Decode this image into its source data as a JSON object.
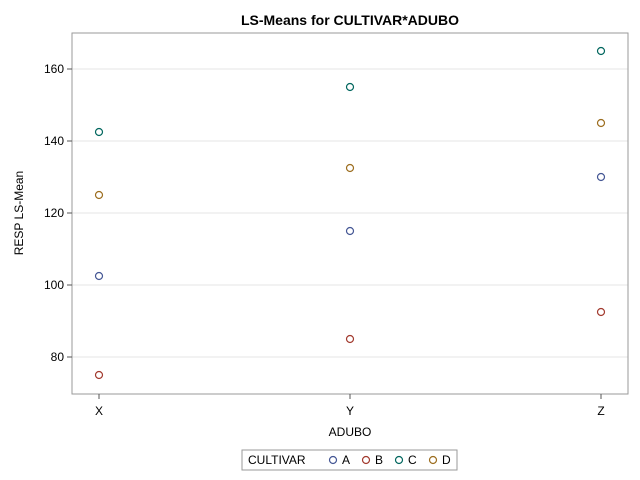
{
  "chart_data": {
    "type": "scatter",
    "title": "LS-Means for CULTIVAR*ADUBO",
    "xlabel": "ADUBO",
    "ylabel": "RESP LS-Mean",
    "categories": [
      "X",
      "Y",
      "Z"
    ],
    "yticks": [
      80,
      100,
      120,
      140,
      160
    ],
    "ylim": [
      70,
      170
    ],
    "grid": true,
    "legend_position": "bottom",
    "legend_title": "CULTIVAR",
    "series": [
      {
        "name": "A",
        "color": "#445694",
        "values": [
          102.5,
          115,
          130
        ]
      },
      {
        "name": "B",
        "color": "#A23A2E",
        "values": [
          75,
          85,
          92.5
        ]
      },
      {
        "name": "C",
        "color": "#01665E",
        "values": [
          142.5,
          155,
          165
        ]
      },
      {
        "name": "D",
        "color": "#9C6D1E",
        "values": [
          125,
          132.5,
          145
        ]
      }
    ]
  }
}
